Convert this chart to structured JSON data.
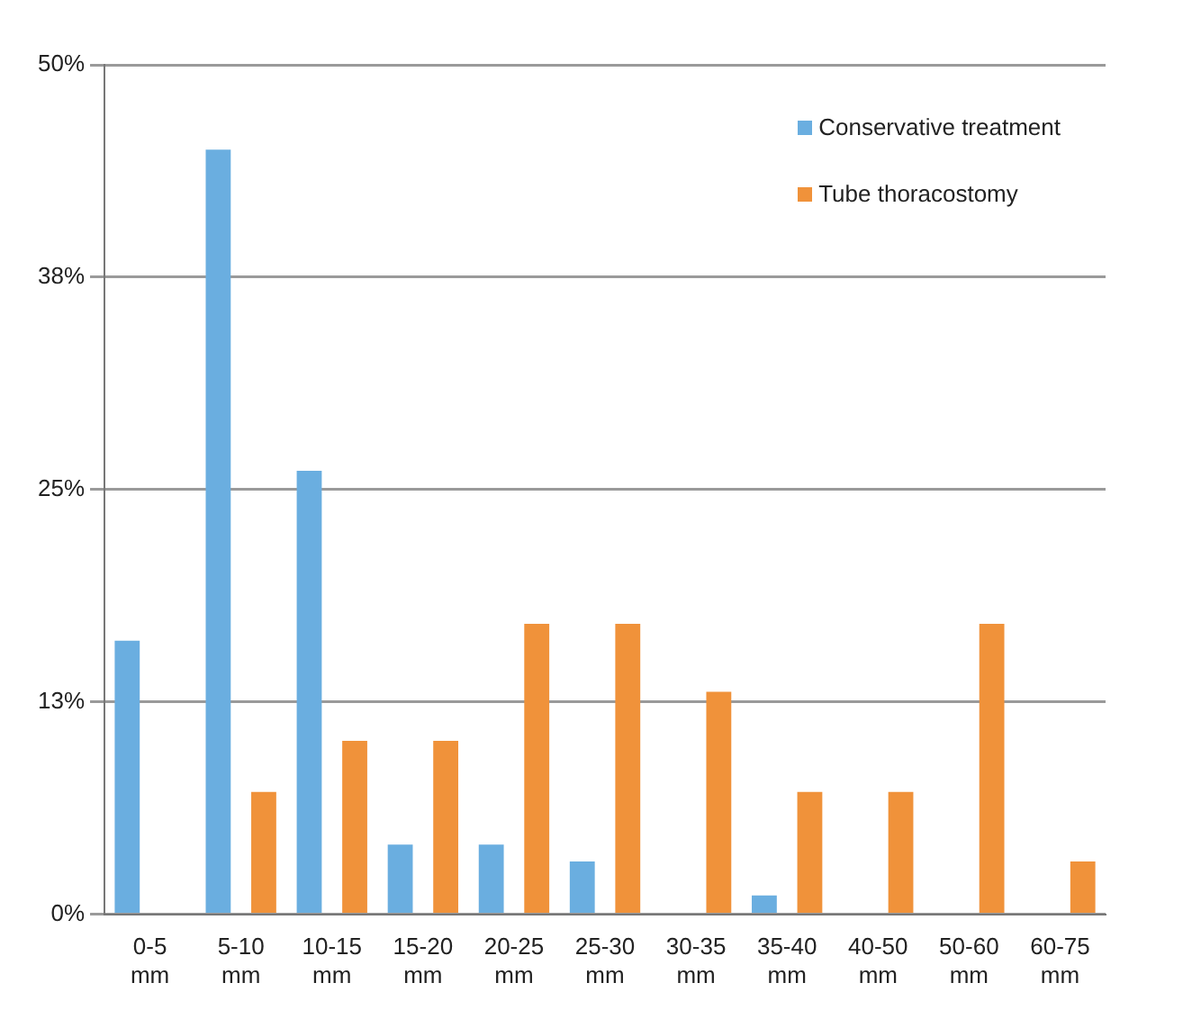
{
  "chart_data": {
    "type": "bar",
    "categories": [
      "0-5 mm",
      "5-10 mm",
      "10-15 mm",
      "15-20 mm",
      "20-25 mm",
      "25-30 mm",
      "30-35 mm",
      "35-40 mm",
      "40-50 mm",
      "50-60 mm",
      "60-75 mm"
    ],
    "series": [
      {
        "name": "Conservative treatment",
        "color": "#6aaee0",
        "values": [
          16.1,
          45.0,
          26.1,
          4.1,
          4.1,
          3.1,
          0,
          1.1,
          0,
          0,
          0
        ]
      },
      {
        "name": "Tube thoracostomy",
        "color": "#f0923a",
        "values": [
          0,
          7.2,
          10.2,
          10.2,
          17.1,
          17.1,
          13.1,
          7.2,
          7.2,
          17.1,
          3.1
        ]
      }
    ],
    "ylim": [
      0,
      50
    ],
    "yticks": [
      {
        "value": 0,
        "label": "0%"
      },
      {
        "value": 12.5,
        "label": "13%"
      },
      {
        "value": 25,
        "label": "25%"
      },
      {
        "value": 37.5,
        "label": "38%"
      },
      {
        "value": 50,
        "label": "50%"
      }
    ],
    "grid": "y",
    "legend": "top right"
  }
}
